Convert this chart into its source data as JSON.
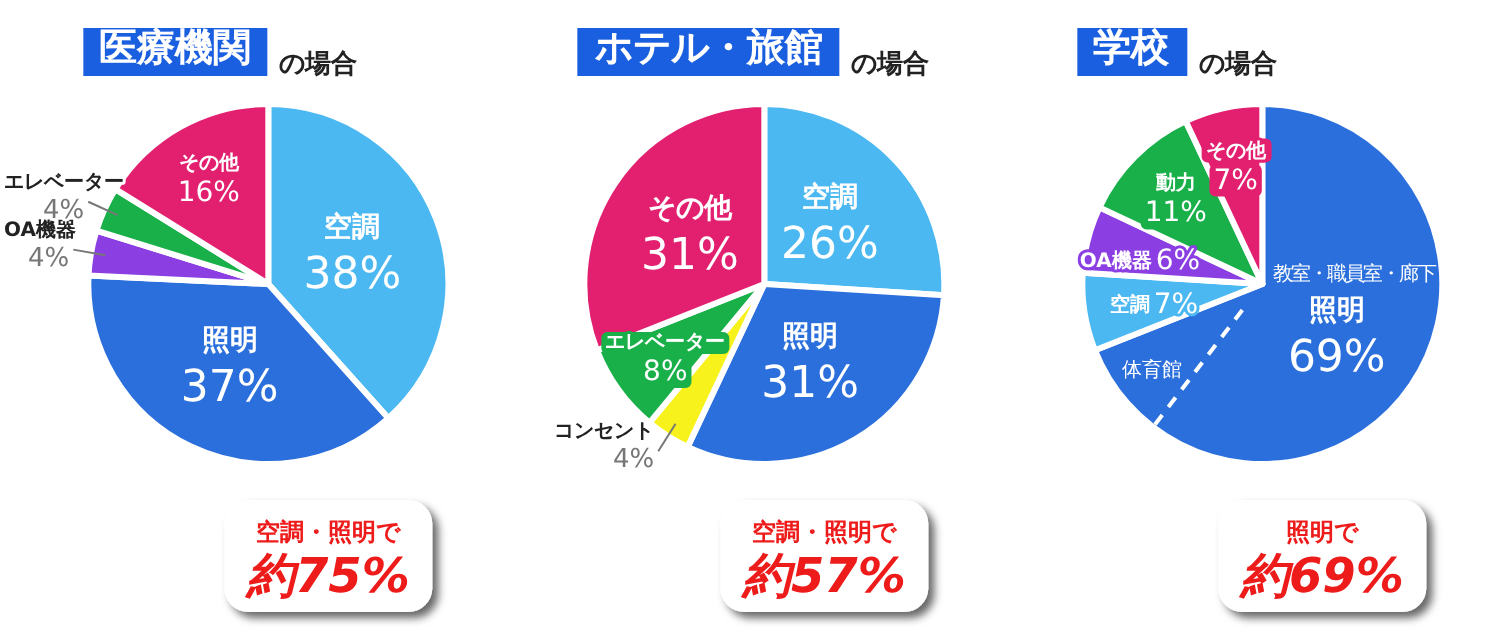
{
  "chart_data": [
    {
      "type": "pie",
      "title": "医療機関",
      "subtitle": "の場合",
      "categories": [
        "空調",
        "照明",
        "OA機器",
        "エレベーター",
        "その他"
      ],
      "values": [
        38,
        37,
        4,
        4,
        16
      ],
      "value_labels": [
        "38%",
        "37%",
        "4%",
        "4%",
        "16%"
      ],
      "colors": [
        "#4bb8f2",
        "#2b6fdc",
        "#8b3fe3",
        "#19b04a",
        "#e2206f"
      ],
      "annotations": [
        "空調・照明で",
        "約75%"
      ]
    },
    {
      "type": "pie",
      "title": "ホテル・旅館",
      "subtitle": "の場合",
      "categories": [
        "空調",
        "照明",
        "コンセント",
        "エレベーター",
        "その他"
      ],
      "values": [
        26,
        31,
        4,
        8,
        31
      ],
      "value_labels": [
        "26%",
        "31%",
        "4%",
        "8%",
        "31%"
      ],
      "colors": [
        "#4bb8f2",
        "#2b6fdc",
        "#f7f21c",
        "#19b04a",
        "#e2206f"
      ],
      "annotations": [
        "空調・照明で",
        "約57%"
      ]
    },
    {
      "type": "pie",
      "title": "学校",
      "subtitle": "の場合",
      "categories": [
        "照明",
        "空調",
        "OA機器",
        "動力",
        "その他"
      ],
      "values": [
        69,
        7,
        6,
        11,
        7
      ],
      "value_labels": [
        "69%",
        "7%",
        "6%",
        "11%",
        "7%"
      ],
      "colors": [
        "#2b6fdc",
        "#4bb8f2",
        "#8b3fe3",
        "#19b04a",
        "#e2206f"
      ],
      "annotations": [
        "教室・職員室・廊下",
        "体育館",
        "照明で",
        "約69%"
      ]
    }
  ]
}
